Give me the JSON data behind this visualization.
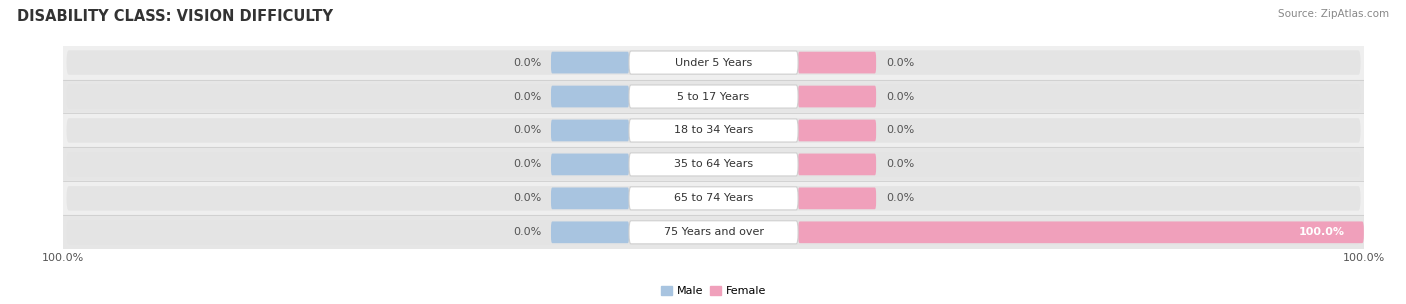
{
  "title": "DISABILITY CLASS: VISION DIFFICULTY",
  "source": "Source: ZipAtlas.com",
  "categories": [
    "Under 5 Years",
    "5 to 17 Years",
    "18 to 34 Years",
    "35 to 64 Years",
    "65 to 74 Years",
    "75 Years and over"
  ],
  "male_values": [
    0.0,
    0.0,
    0.0,
    0.0,
    0.0,
    0.0
  ],
  "female_values": [
    0.0,
    0.0,
    0.0,
    0.0,
    0.0,
    100.0
  ],
  "male_color": "#a8c4e0",
  "female_color": "#f0a0bb",
  "bar_bg_color": "#e4e4e4",
  "row_bg_even": "#f2f2f2",
  "row_bg_odd": "#e8e8e8",
  "title_fontsize": 10.5,
  "label_fontsize": 8.0,
  "fig_width": 14.06,
  "fig_height": 3.04
}
